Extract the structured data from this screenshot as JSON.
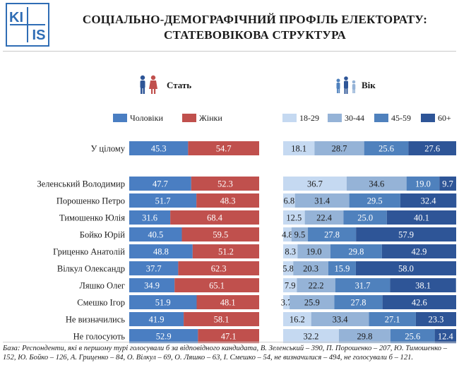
{
  "logo": {
    "text_top": "KI",
    "text_bottom": "IS"
  },
  "title": {
    "line1": "СОЦІАЛЬНО-ДЕМОГРАФІЧНИЙ ПРОФІЛЬ ЕЛЕКТОРАТУ:",
    "line2": "СТАТЕВОВІКОВА СТРУКТУРА"
  },
  "sections": {
    "gender": "Стать",
    "age": "Вік"
  },
  "colors": {
    "men": "#4a7ec2",
    "women": "#c0504d",
    "age_18_29": "#c5d9f1",
    "age_30_44": "#95b3d7",
    "age_45_59": "#4f81bd",
    "age_60": "#2e5597"
  },
  "chart_data": [
    {
      "type": "bar",
      "stacked": "horizontal-100",
      "title": "Стать",
      "categories": [
        "У цілому",
        "Зеленський Володимир",
        "Порошенко Петро",
        "Тимошенко Юлія",
        "Бойко Юрій",
        "Гриценко Анатолій",
        "Вілкул Олександр",
        "Ляшко Олег",
        "Смешко Ігор",
        "Не визначились",
        "Не голосують"
      ],
      "series": [
        {
          "name": "Чоловіки",
          "values": [
            45.3,
            47.7,
            51.7,
            31.6,
            40.5,
            48.8,
            37.7,
            34.9,
            51.9,
            41.9,
            52.9
          ]
        },
        {
          "name": "Жінки",
          "values": [
            54.7,
            52.3,
            48.3,
            68.4,
            59.5,
            51.2,
            62.3,
            65.1,
            48.1,
            58.1,
            47.1
          ]
        }
      ],
      "legend": "top"
    },
    {
      "type": "bar",
      "stacked": "horizontal-100",
      "title": "Вік",
      "categories": [
        "У цілому",
        "Зеленський Володимир",
        "Порошенко Петро",
        "Тимошенко Юлія",
        "Бойко Юрій",
        "Гриценко Анатолій",
        "Вілкул Олександр",
        "Ляшко Олег",
        "Смешко Ігор",
        "Не визначились",
        "Не голосують"
      ],
      "series": [
        {
          "name": "18-29",
          "values": [
            18.1,
            36.7,
            6.8,
            12.5,
            4.8,
            8.3,
            5.8,
            7.9,
            3.7,
            16.2,
            32.2
          ]
        },
        {
          "name": "30-44",
          "values": [
            28.7,
            34.6,
            31.4,
            22.4,
            9.5,
            19.0,
            20.3,
            22.2,
            25.9,
            33.4,
            29.8
          ]
        },
        {
          "name": "45-59",
          "values": [
            25.6,
            19.0,
            29.5,
            25.0,
            27.8,
            29.8,
            15.9,
            31.7,
            27.8,
            27.1,
            25.6
          ]
        },
        {
          "name": "60+",
          "values": [
            27.6,
            9.7,
            32.4,
            40.1,
            57.9,
            42.9,
            58.0,
            38.1,
            42.6,
            23.3,
            12.4
          ]
        }
      ],
      "legend": "top"
    }
  ],
  "footnote": "База: Респонденти, які в першому турі голосували б за відповідного кандидата, В. Зеленський – 390, П. Порошенко – 207, Ю. Тимошенко – 152, Ю. Бойко – 126, А. Гриценко – 84, О. Вілкул – 69, О. Ляшко – 63, І. Смешко – 54, не визначилися – 494, не голосували б – 121."
}
